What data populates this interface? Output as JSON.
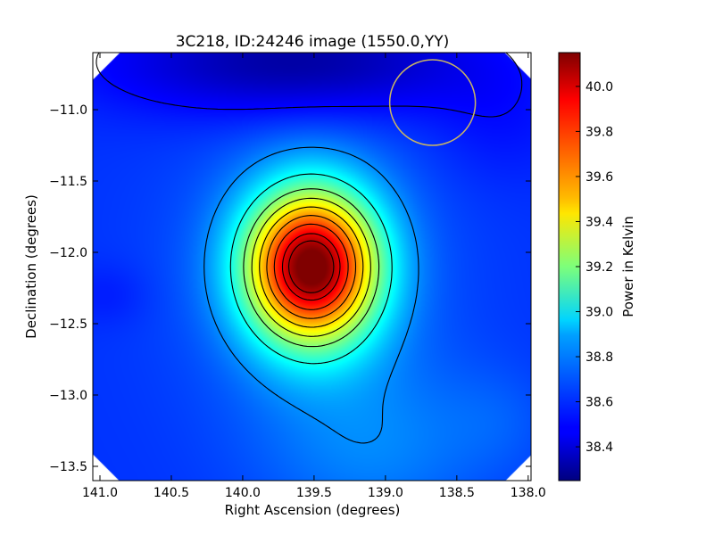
{
  "chart_data": {
    "type": "heatmap",
    "title": "3C218, ID:24246 image (1550.0,YY)",
    "xlabel": "Right Ascension (degrees)",
    "ylabel": "Declination (degrees)",
    "colorbar_label": "Power in Kelvin",
    "colormap": "jet",
    "xlim": [
      141.05,
      137.98
    ],
    "ylim": [
      -13.6,
      -10.6
    ],
    "x_inverted": true,
    "x_ticks": [
      141.0,
      140.5,
      140.0,
      139.5,
      139.0,
      138.5,
      138.0
    ],
    "x_tick_labels": [
      "141.0",
      "140.5",
      "140.0",
      "139.5",
      "139.0",
      "138.5",
      "138.0"
    ],
    "y_ticks": [
      -11.0,
      -11.5,
      -12.0,
      -12.5,
      -13.0,
      -13.5
    ],
    "y_tick_labels": [
      "−11.0",
      "−11.5",
      "−12.0",
      "−12.5",
      "−13.0",
      "−13.5"
    ],
    "colorbar_range": [
      38.25,
      40.15
    ],
    "colorbar_ticks": [
      38.4,
      38.6,
      38.8,
      39.0,
      39.2,
      39.4,
      39.6,
      39.8,
      40.0
    ],
    "colorbar_tick_labels": [
      "38.4",
      "38.6",
      "38.8",
      "39.0",
      "39.2",
      "39.4",
      "39.6",
      "39.8",
      "40.0"
    ],
    "peak": {
      "ra": 139.52,
      "dec": -12.1,
      "value": 40.1
    },
    "beam_circle": {
      "ra": 138.67,
      "dec": -10.95,
      "radius_deg": 0.3,
      "color": "#c8b464"
    },
    "contour_levels": [
      38.5,
      38.75,
      39.0,
      39.2,
      39.35,
      39.5,
      39.65,
      39.8,
      39.95,
      40.05
    ],
    "colors": {
      "contour": "#000000",
      "background": "#ffffff"
    }
  }
}
